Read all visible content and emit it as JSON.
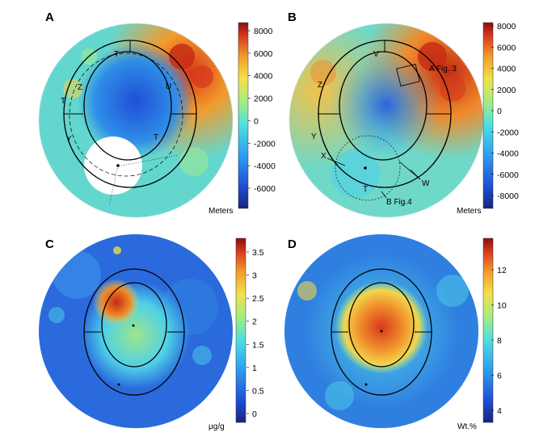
{
  "figure": {
    "panels": [
      {
        "id": "A",
        "letter": "A",
        "colorbar": {
          "unit": "Meters",
          "ticks": [
            "8000",
            "6000",
            "4000",
            "2000",
            "0",
            "-2000",
            "-4000",
            "-6000"
          ]
        },
        "annotations": [
          "T",
          "Z",
          "U",
          "T",
          "Y",
          "T"
        ],
        "palette": [
          "#1a3bb8",
          "#2f7fe0",
          "#4fd0e8",
          "#a6ec8a",
          "#f2d64a",
          "#f08a2a",
          "#c42a14"
        ]
      },
      {
        "id": "B",
        "letter": "B",
        "colorbar": {
          "unit": "Meters",
          "ticks": [
            "8000",
            "6000",
            "4000",
            "2000",
            "0",
            "-2000",
            "-4000",
            "-6000",
            "-8000"
          ]
        },
        "annotations": [
          "V",
          "A Fig. 3",
          "Z",
          "Y",
          "X",
          "W",
          "T",
          "B Fig.4"
        ],
        "palette": [
          "#1a3bb8",
          "#2f7fe0",
          "#4fd0e8",
          "#a6ec8a",
          "#f2d64a",
          "#f08a2a",
          "#c42a14"
        ]
      },
      {
        "id": "C",
        "letter": "C",
        "colorbar": {
          "unit": "μg/g",
          "ticks": [
            "3.5",
            "3",
            "2.5",
            "2",
            "1.5",
            "1",
            "0.5",
            "0"
          ]
        },
        "annotations": [],
        "palette": [
          "#1a3bb8",
          "#2f7fe0",
          "#4fd0e8",
          "#a6ec8a",
          "#f2d64a",
          "#f08a2a",
          "#c42a14"
        ]
      },
      {
        "id": "D",
        "letter": "D",
        "colorbar": {
          "unit": "Wt.%",
          "ticks": [
            "12",
            "10",
            "8",
            "6",
            "4"
          ]
        },
        "annotations": [],
        "palette": [
          "#1a3bb8",
          "#2f7fe0",
          "#4fd0e8",
          "#a6ec8a",
          "#f2d64a",
          "#f08a2a",
          "#c42a14"
        ]
      }
    ]
  }
}
